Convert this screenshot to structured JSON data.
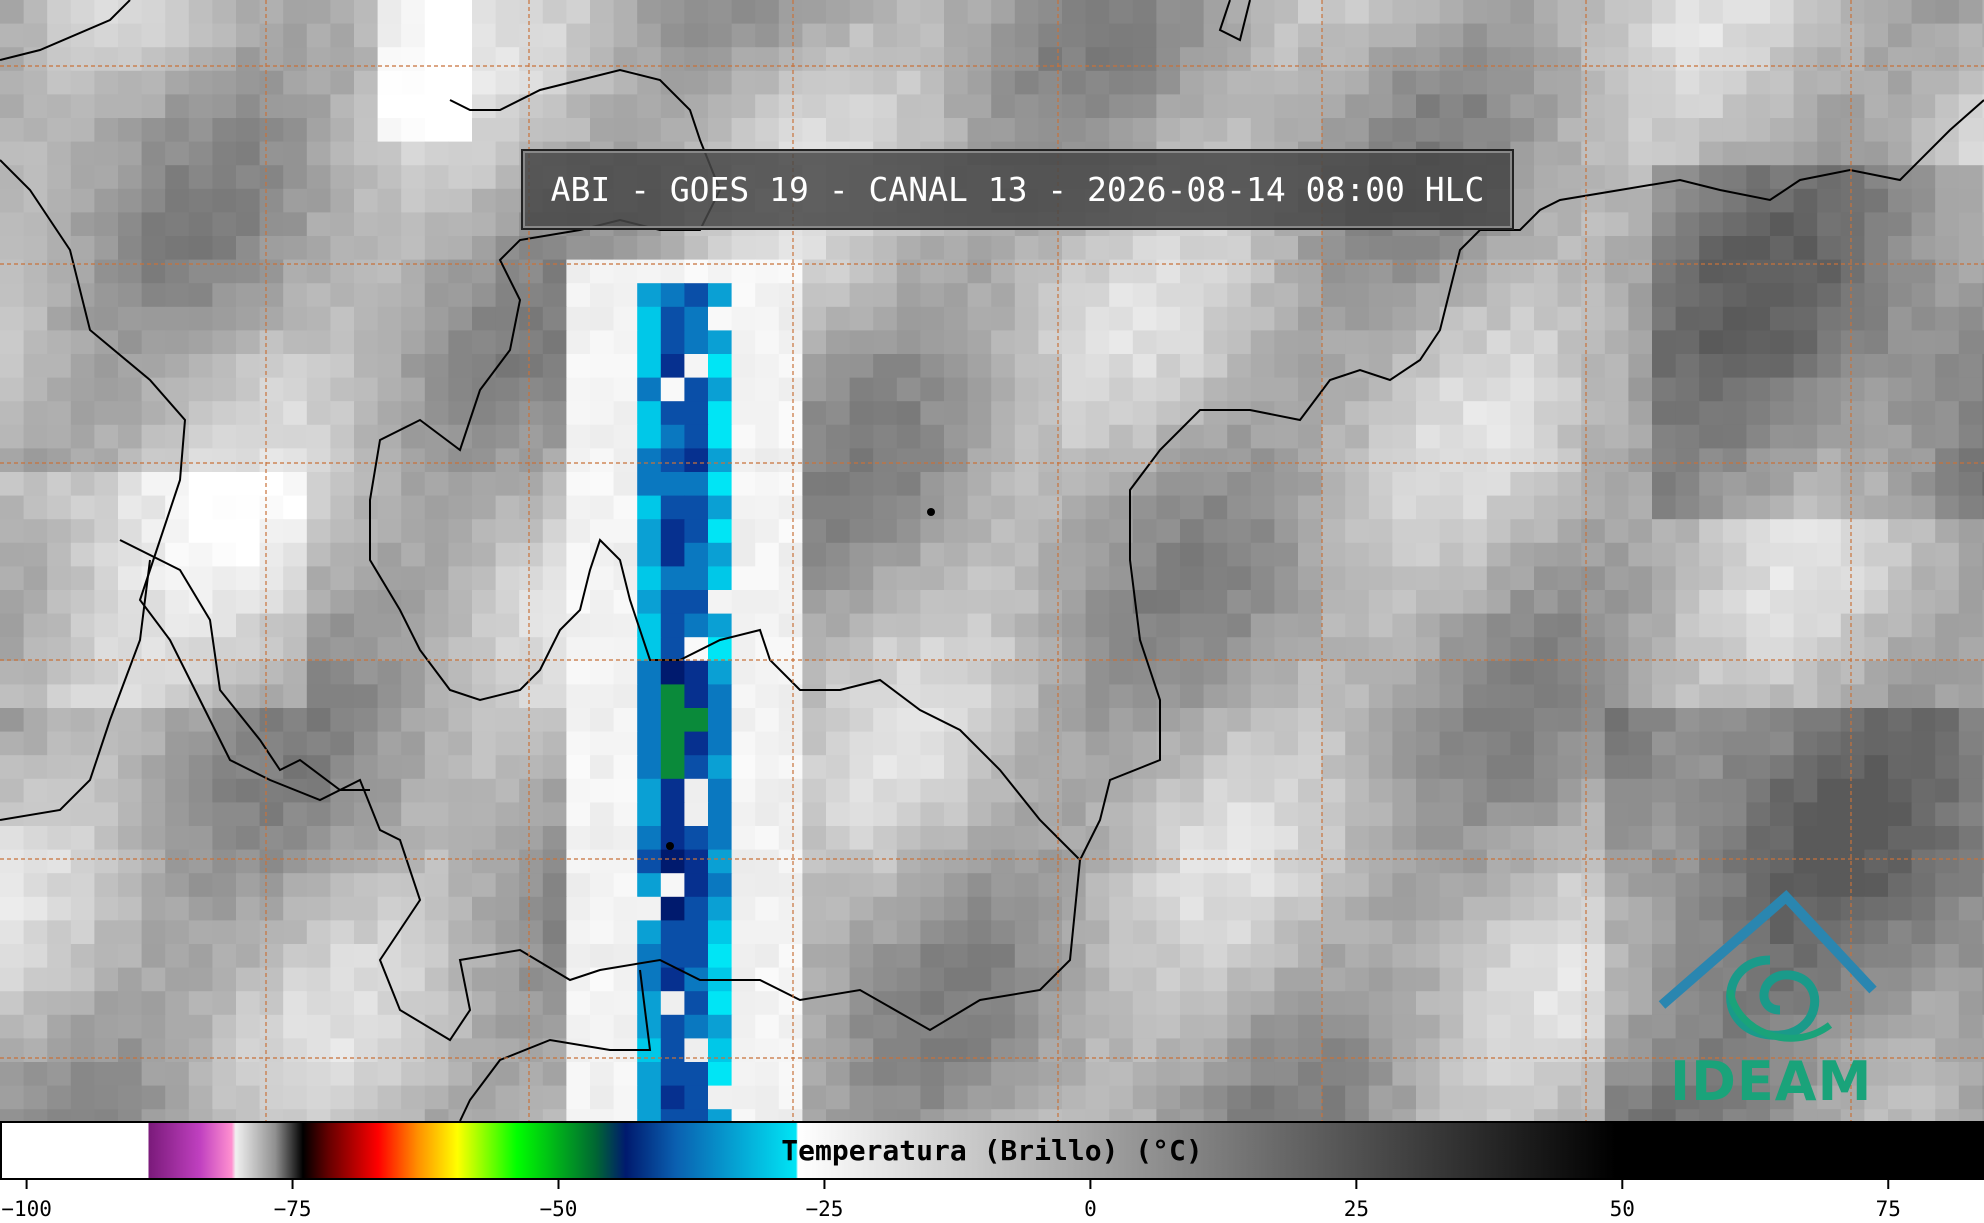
{
  "title": "ABI - GOES 19 - CANAL 13 - 2026-08-14 08:00 HLC",
  "logo": "IDEAM",
  "chart_data": {
    "type": "colorbar",
    "label": "Temperatura (Brillo) (°C)",
    "xlim": [
      -102.5,
      84
    ],
    "xticks": [
      {
        "value": -100,
        "label": "−100"
      },
      {
        "value": -75,
        "label": "−75"
      },
      {
        "value": -50,
        "label": "−50"
      },
      {
        "value": -25,
        "label": "−25"
      },
      0,
      25,
      50,
      75
    ]
  }
}
